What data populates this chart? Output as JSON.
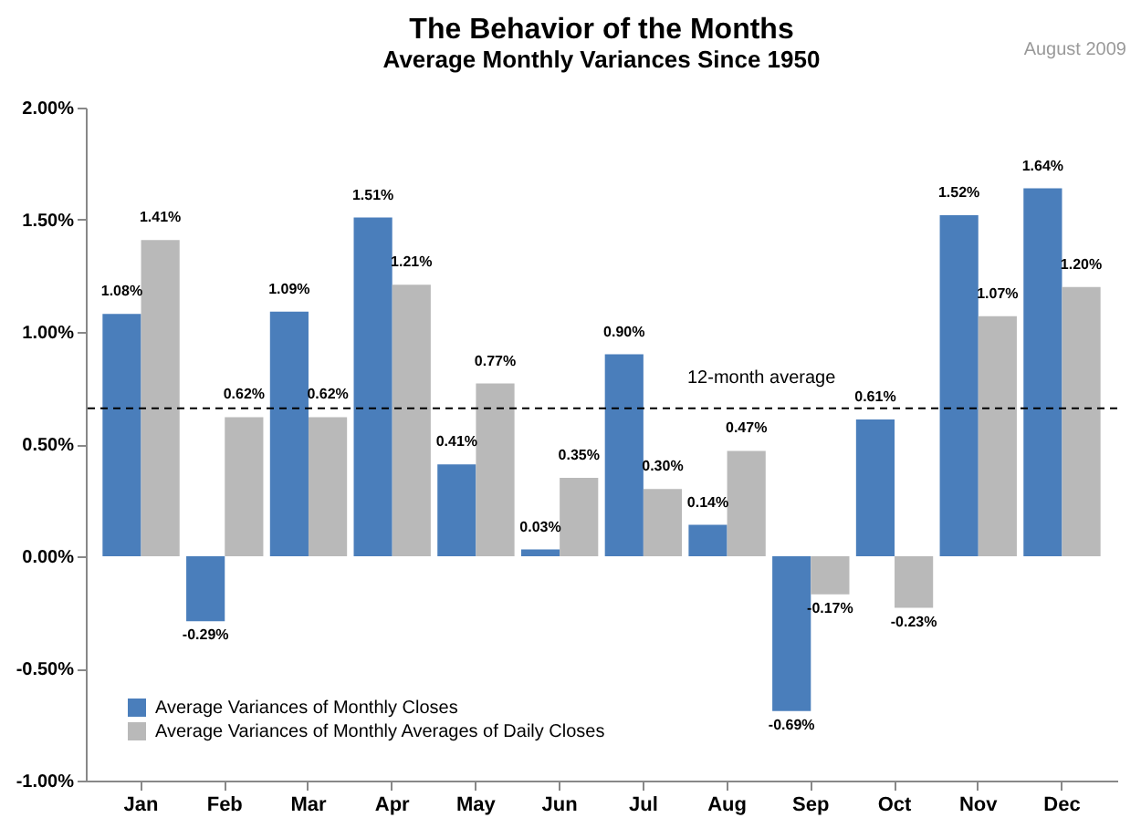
{
  "chart_data": {
    "type": "bar",
    "title": "The Behavior of the Months",
    "subtitle": "Average Monthly Variances Since 1950",
    "annotations": [
      "August 2009"
    ],
    "categories": [
      "Jan",
      "Feb",
      "Mar",
      "Apr",
      "May",
      "Jun",
      "Jul",
      "Aug",
      "Sep",
      "Oct",
      "Nov",
      "Dec"
    ],
    "series": [
      {
        "name": "Average Variances of Monthly Closes",
        "color": "#4a7ebb",
        "values": [
          1.08,
          -0.29,
          1.09,
          1.51,
          0.41,
          0.03,
          0.9,
          0.14,
          -0.69,
          0.61,
          1.52,
          1.64
        ],
        "value_labels": [
          "1.08%",
          "-0.29%",
          "1.09%",
          "1.51%",
          "0.41%",
          "0.03%",
          "0.90%",
          "0.14%",
          "-0.69%",
          "0.61%",
          "1.52%",
          "1.64%"
        ]
      },
      {
        "name": "Average Variances of Monthly Averages of Daily Closes",
        "color": "#b9b9b9",
        "values": [
          1.41,
          0.62,
          0.62,
          1.21,
          0.77,
          0.35,
          0.3,
          0.47,
          -0.17,
          -0.23,
          1.07,
          1.2
        ],
        "value_labels": [
          "1.41%",
          "0.62%",
          "0.62%",
          "1.21%",
          "0.77%",
          "0.35%",
          "0.30%",
          "0.47%",
          "-0.17%",
          "-0.23%",
          "1.07%",
          "1.20%"
        ]
      }
    ],
    "ylim": [
      -1,
      2
    ],
    "yticks": [
      {
        "value": -1,
        "label": "-1.00%"
      },
      {
        "value": -0.5,
        "label": "-0.50%"
      },
      {
        "value": 0,
        "label": "0.00%"
      },
      {
        "value": 0.5,
        "label": "0.50%"
      },
      {
        "value": 1,
        "label": "1.00%"
      },
      {
        "value": 1.5,
        "label": "1.50%"
      },
      {
        "value": 2,
        "label": "2.00%"
      }
    ],
    "ref_lines": [
      {
        "axis": "y",
        "value": 0.66,
        "label": "12-month average",
        "line_style": "dashed"
      }
    ],
    "legend": "bottom left",
    "grid": false
  }
}
